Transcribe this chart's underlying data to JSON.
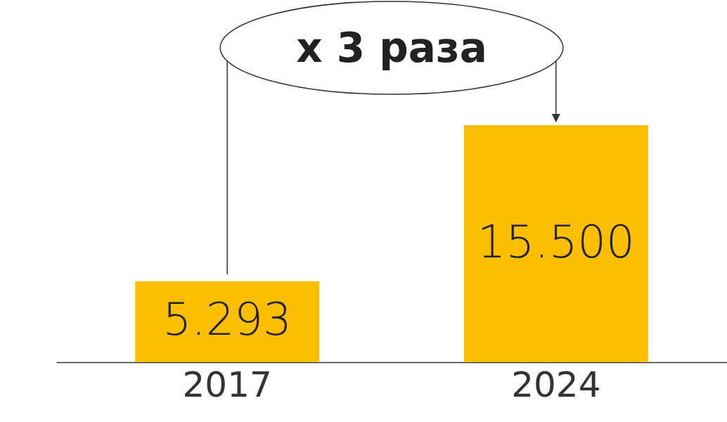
{
  "chart_data": {
    "type": "bar",
    "categories": [
      "2017",
      "2024"
    ],
    "values": [
      5293,
      15500
    ],
    "value_labels": [
      "5.293",
      "15.500"
    ],
    "color": "#fbbf00",
    "annotations": [
      "x 3 раза"
    ]
  }
}
